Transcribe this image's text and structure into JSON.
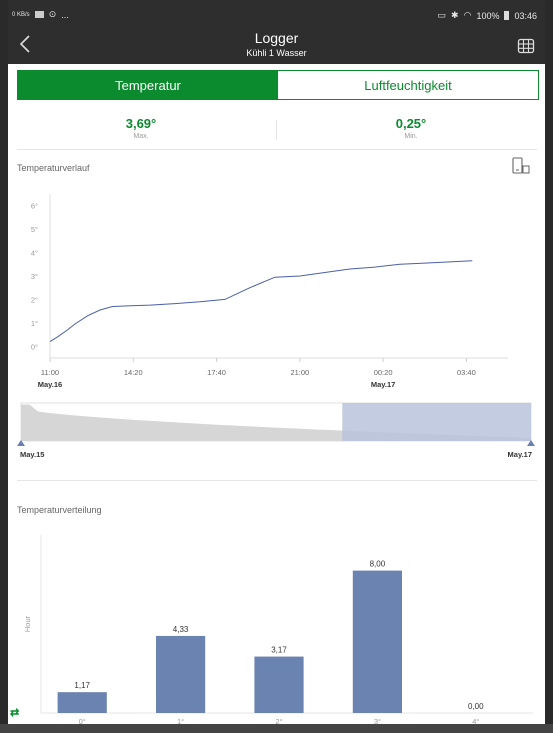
{
  "status_bar": {
    "data_indicator": "0 KB/s",
    "battery": "100%",
    "time": "03:46",
    "ellipsis": "..."
  },
  "header": {
    "title": "Logger",
    "subtitle": "Kühli 1 Wasser",
    "back_icon": "back-arrow-icon",
    "table_icon": "table-grid-icon"
  },
  "tabs": [
    {
      "label": "Temperatur",
      "active": true
    },
    {
      "label": "Luftfeuchtigkeit",
      "active": false
    }
  ],
  "stats": {
    "max_value": "3,69°",
    "max_label": "Max.",
    "min_value": "0,25°",
    "min_label": "Min."
  },
  "line_section": {
    "title": "Temperaturverlauf",
    "device_icon": "rotate-device-icon"
  },
  "distribution_section": {
    "title": "Temperaturverteilung"
  },
  "navigator": {
    "start_label": "May.15",
    "end_label": "May.17",
    "selected_fraction_start": 0.63
  },
  "colors": {
    "accent": "#0b8a2e",
    "line": "#4a5fa8",
    "bar": "#6a83b0",
    "nav_fill": "#b8c3da"
  },
  "chart_data": [
    {
      "type": "line",
      "title": "Temperaturverlauf",
      "x_tick_labels": [
        "11:00",
        "14:20",
        "17:40",
        "21:00",
        "00:20",
        "03:40"
      ],
      "x_date_labels": [
        {
          "at": "11:00",
          "label": "May.16"
        },
        {
          "at": "00:20",
          "label": "May.17"
        }
      ],
      "y_tick_labels": [
        "0°",
        "1°",
        "2°",
        "3°",
        "4°",
        "5°",
        "6°"
      ],
      "ylim": [
        -0.5,
        6.5
      ],
      "x_hours": [
        0,
        0.3,
        0.7,
        1.0,
        1.5,
        2.0,
        2.5,
        3.0,
        4.0,
        5.0,
        6.0,
        7.0,
        8.0,
        9.0,
        10.0,
        11.0,
        12.0,
        13.0,
        14.0,
        15.0,
        16.0,
        16.9
      ],
      "series": [
        {
          "values": [
            0.2,
            0.4,
            0.7,
            0.95,
            1.3,
            1.55,
            1.7,
            1.72,
            1.76,
            1.82,
            1.9,
            2.0,
            2.5,
            2.95,
            3.0,
            3.15,
            3.3,
            3.38,
            3.5,
            3.55,
            3.6,
            3.65
          ]
        }
      ]
    },
    {
      "type": "bar",
      "title": "Temperaturverteilung",
      "ylabel": "Hour",
      "categories": [
        "0°",
        "1°",
        "2°",
        "3°",
        "4°"
      ],
      "values": [
        1.17,
        4.33,
        3.17,
        8.0,
        0.0
      ],
      "value_labels": [
        "1,17",
        "4,33",
        "3,17",
        "8,00",
        "0,00"
      ],
      "ylim": [
        0,
        10
      ]
    }
  ]
}
